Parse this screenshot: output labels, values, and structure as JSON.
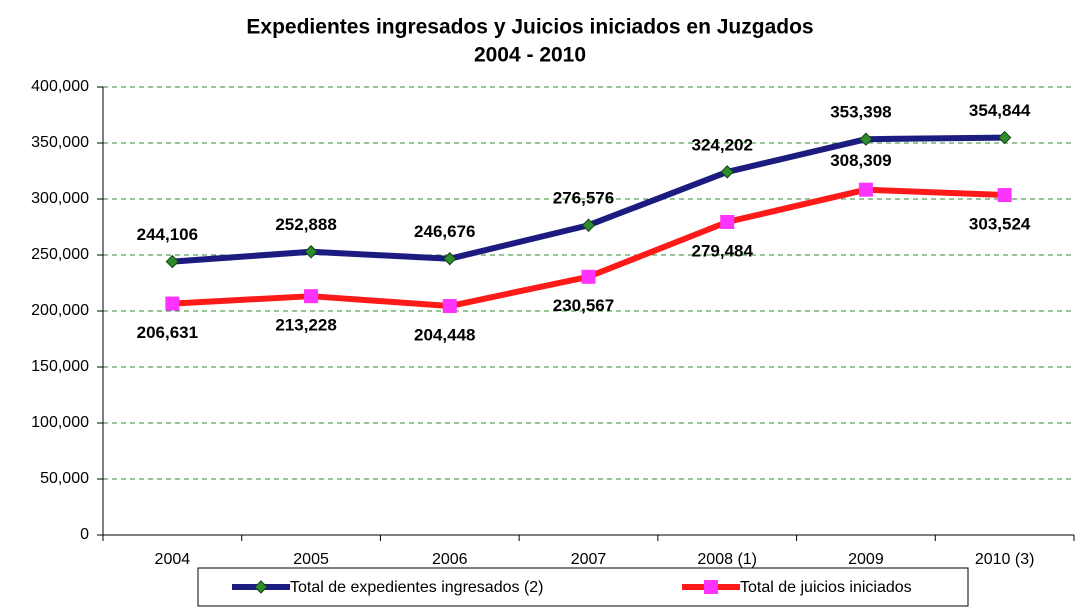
{
  "chart_data": {
    "type": "line",
    "title": "Expedientes ingresados y Juicios iniciados en Juzgados",
    "subtitle": "2004 - 2010",
    "categories": [
      "2004",
      "2005",
      "2006",
      "2007",
      "2008 (1)",
      "2009",
      "2010 (3)"
    ],
    "series": [
      {
        "name": "Total de expedientes ingresados (2)",
        "color": "#1c1c80",
        "marker": "diamond",
        "marker_color": "#2e8b2e",
        "values": [
          244106,
          252888,
          246676,
          276576,
          324202,
          353398,
          354844
        ],
        "value_labels": [
          "244,106",
          "252,888",
          "246,676",
          "276,576",
          "324,202",
          "353,398",
          "354,844"
        ]
      },
      {
        "name": "Total de juicios iniciados",
        "color": "#ff1a1a",
        "marker": "square",
        "marker_color": "#ff33ff",
        "values": [
          206631,
          213228,
          204448,
          230567,
          279484,
          308309,
          303524
        ],
        "value_labels": [
          "206,631",
          "213,228",
          "204,448",
          "230,567",
          "279,484",
          "308,309",
          "303,524"
        ]
      }
    ],
    "ylim": [
      0,
      400000
    ],
    "yticks": [
      0,
      {
        "value": 50000,
        "label": "50,000"
      },
      {
        "value": 100000,
        "label": "100,000"
      },
      {
        "value": 150000,
        "label": "150,000"
      },
      {
        "value": 200000,
        "label": "200,000"
      },
      {
        "value": 250000,
        "label": "250,000"
      },
      {
        "value": 300000,
        "label": "300,000"
      },
      {
        "value": 350000,
        "label": "350,000"
      },
      {
        "value": 400000,
        "label": "400,000"
      }
    ],
    "grid": true,
    "legend": "bottom"
  }
}
